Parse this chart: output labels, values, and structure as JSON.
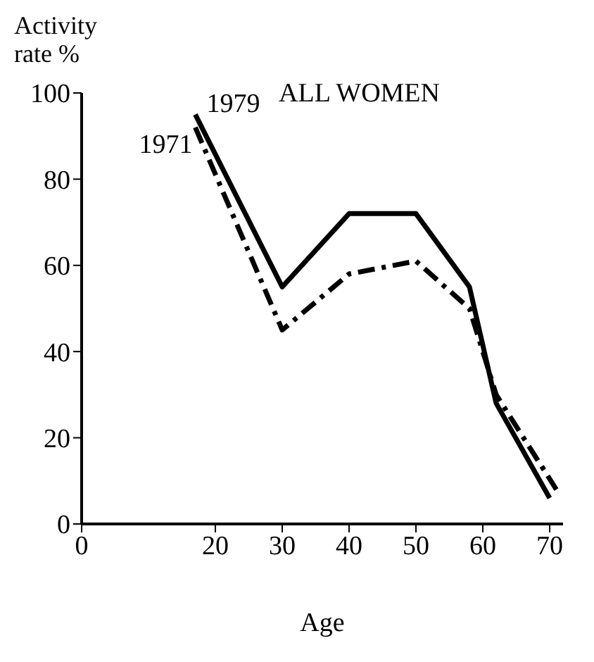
{
  "chart_data": {
    "type": "line",
    "title": "ALL WOMEN",
    "xlabel": "Age",
    "ylabel": "Activity rate %",
    "xlim": [
      0,
      72
    ],
    "xticks": [
      0,
      20,
      30,
      40,
      50,
      60,
      70
    ],
    "ylim": [
      0,
      100
    ],
    "yticks": [
      0,
      20,
      40,
      60,
      80,
      100
    ],
    "grid": false,
    "legend": false,
    "marker": "none",
    "series": [
      {
        "name": "1979",
        "color": "#000000",
        "line_style": "solid",
        "x": [
          17,
          30,
          40,
          50,
          58,
          62,
          70
        ],
        "values": [
          95,
          55,
          72,
          72,
          55,
          28,
          6
        ]
      },
      {
        "name": "1971",
        "color": "#000000",
        "line_style": "dashed",
        "x": [
          17,
          30,
          40,
          50,
          58,
          62,
          71
        ],
        "values": [
          92,
          45,
          58,
          61,
          50,
          30,
          8
        ]
      }
    ]
  }
}
